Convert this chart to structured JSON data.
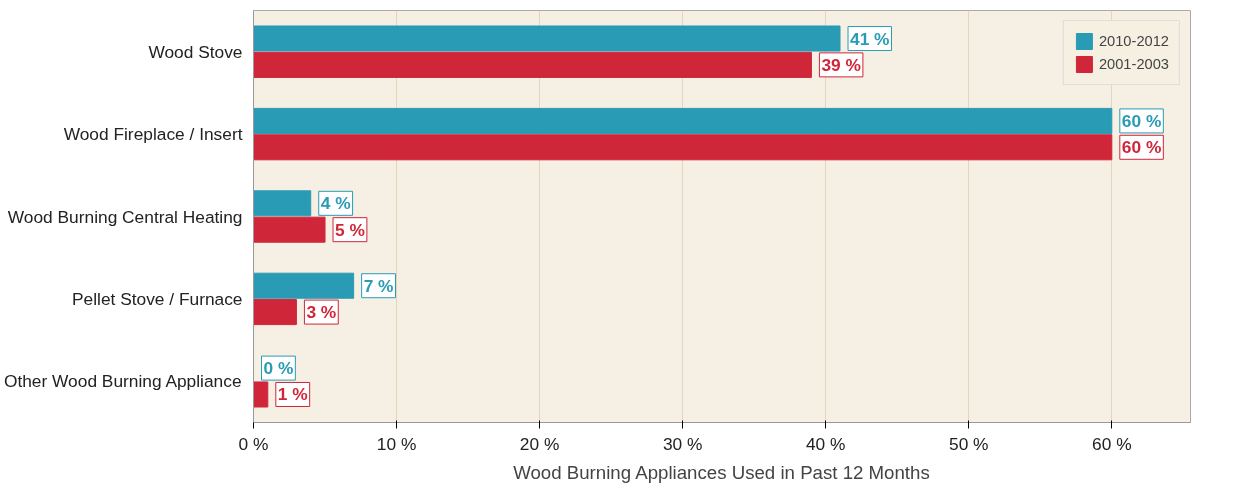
{
  "chart_data": {
    "type": "bar",
    "orientation": "horizontal",
    "xlabel": "Wood Burning Appliances Used in Past 12 Months",
    "categories": [
      "Wood Stove",
      "Wood Fireplace / Insert",
      "Wood Burning Central Heating",
      "Pellet Stove / Furnace",
      "Other Wood Burning Appliance"
    ],
    "series": [
      {
        "name": "2010-2012",
        "color": "#2a9bb5",
        "values": [
          41,
          60,
          4,
          7,
          0
        ],
        "value_labels": [
          "41 %",
          "60 %",
          "4 %",
          "7 %",
          "0 %"
        ]
      },
      {
        "name": "2001-2003",
        "color": "#d0263a",
        "values": [
          39,
          60,
          5,
          3,
          1
        ],
        "value_labels": [
          "39 %",
          "60 %",
          "5 %",
          "3 %",
          "1 %"
        ]
      }
    ],
    "xlim": [
      0,
      65.5
    ],
    "xticks": [
      {
        "value": 0,
        "label": "0 %"
      },
      {
        "value": 10,
        "label": "10 %"
      },
      {
        "value": 20,
        "label": "20 %"
      },
      {
        "value": 30,
        "label": "30 %"
      },
      {
        "value": 40,
        "label": "40 %"
      },
      {
        "value": 50,
        "label": "50 %"
      },
      {
        "value": 60,
        "label": "60 %"
      }
    ],
    "grid": "x",
    "legend": "top right"
  }
}
